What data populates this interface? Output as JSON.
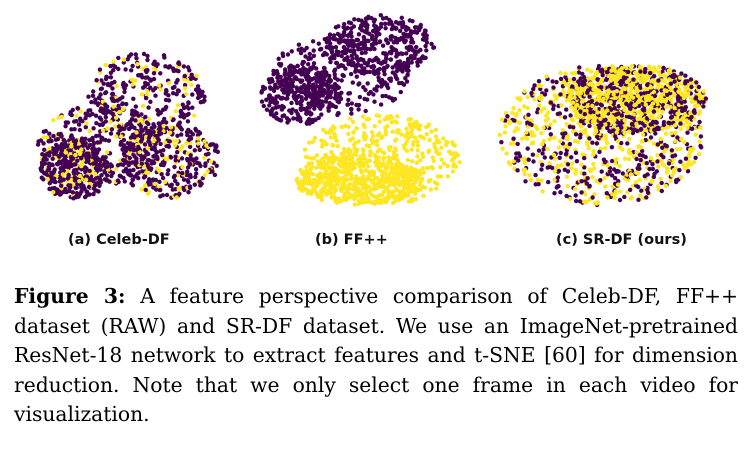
{
  "colors": {
    "class_a": "#440154",
    "class_b": "#fde725"
  },
  "chart_data": [
    {
      "type": "scatter",
      "caption": "(a) Celeb-DF",
      "series": []
    },
    {
      "type": "scatter",
      "caption": "(b) FF++",
      "series": []
    },
    {
      "type": "scatter",
      "caption": "(c) SR-DF (ours)",
      "series": []
    }
  ],
  "figure_caption": {
    "label": "Figure 3:",
    "text": "A feature perspective comparison of Celeb-DF, FF++ dataset (RAW) and SR-DF dataset. We use an ImageNet-pretrained ResNet-18 network to extract features and t-SNE [60] for dimension reduction. Note that we only select one frame in each video for visualization."
  }
}
